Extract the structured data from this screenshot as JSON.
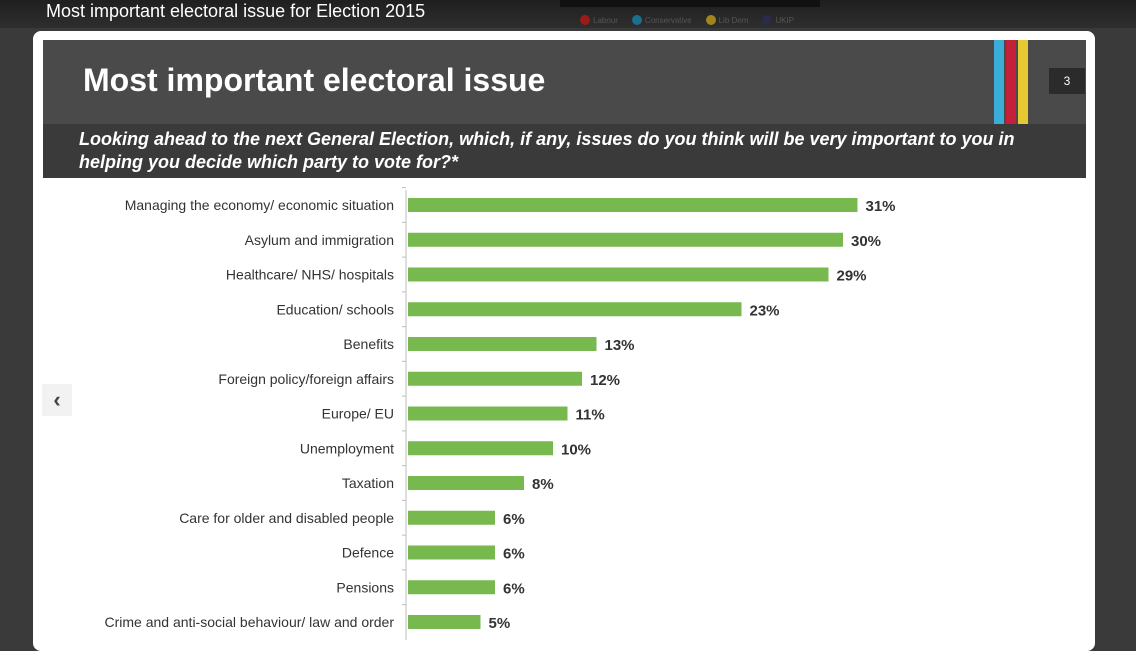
{
  "screen_title": "Most important electoral issue for Election 2015",
  "legend": [
    {
      "label": "Labour",
      "color": "#9b1b1b"
    },
    {
      "label": "Conservative",
      "color": "#1a6e8e"
    },
    {
      "label": "Lib Dem",
      "color": "#a0861c"
    },
    {
      "label": "UKIP",
      "color": "#2a2a4a"
    }
  ],
  "slide": {
    "title": "Most important electoral issue",
    "page_number": "3",
    "question": "Looking ahead to the next General Election, which, if any, issues do you think will be very important to you in helping you decide which party to vote for?*",
    "accent_colors": [
      "#3aaed8",
      "#c4203c",
      "#e6c832"
    ]
  },
  "nav": {
    "prev_icon": "‹"
  },
  "chart_data": {
    "type": "bar",
    "orientation": "horizontal",
    "bar_color": "#77b94f",
    "categories": [
      "Managing the economy/ economic situation",
      "Asylum and immigration",
      "Healthcare/ NHS/ hospitals",
      "Education/ schools",
      "Benefits",
      "Foreign policy/foreign affairs",
      "Europe/ EU",
      "Unemployment",
      "Taxation",
      "Care for older and disabled people",
      "Defence",
      "Pensions",
      "Crime and anti-social behaviour/ law and order"
    ],
    "values": [
      31,
      30,
      29,
      23,
      13,
      12,
      11,
      10,
      8,
      6,
      6,
      6,
      5
    ],
    "value_labels": [
      "31%",
      "30%",
      "29%",
      "23%",
      "13%",
      "12%",
      "11%",
      "10%",
      "8%",
      "6%",
      "6%",
      "6%",
      "5%"
    ],
    "title": "",
    "xlabel": "",
    "ylabel": ""
  }
}
